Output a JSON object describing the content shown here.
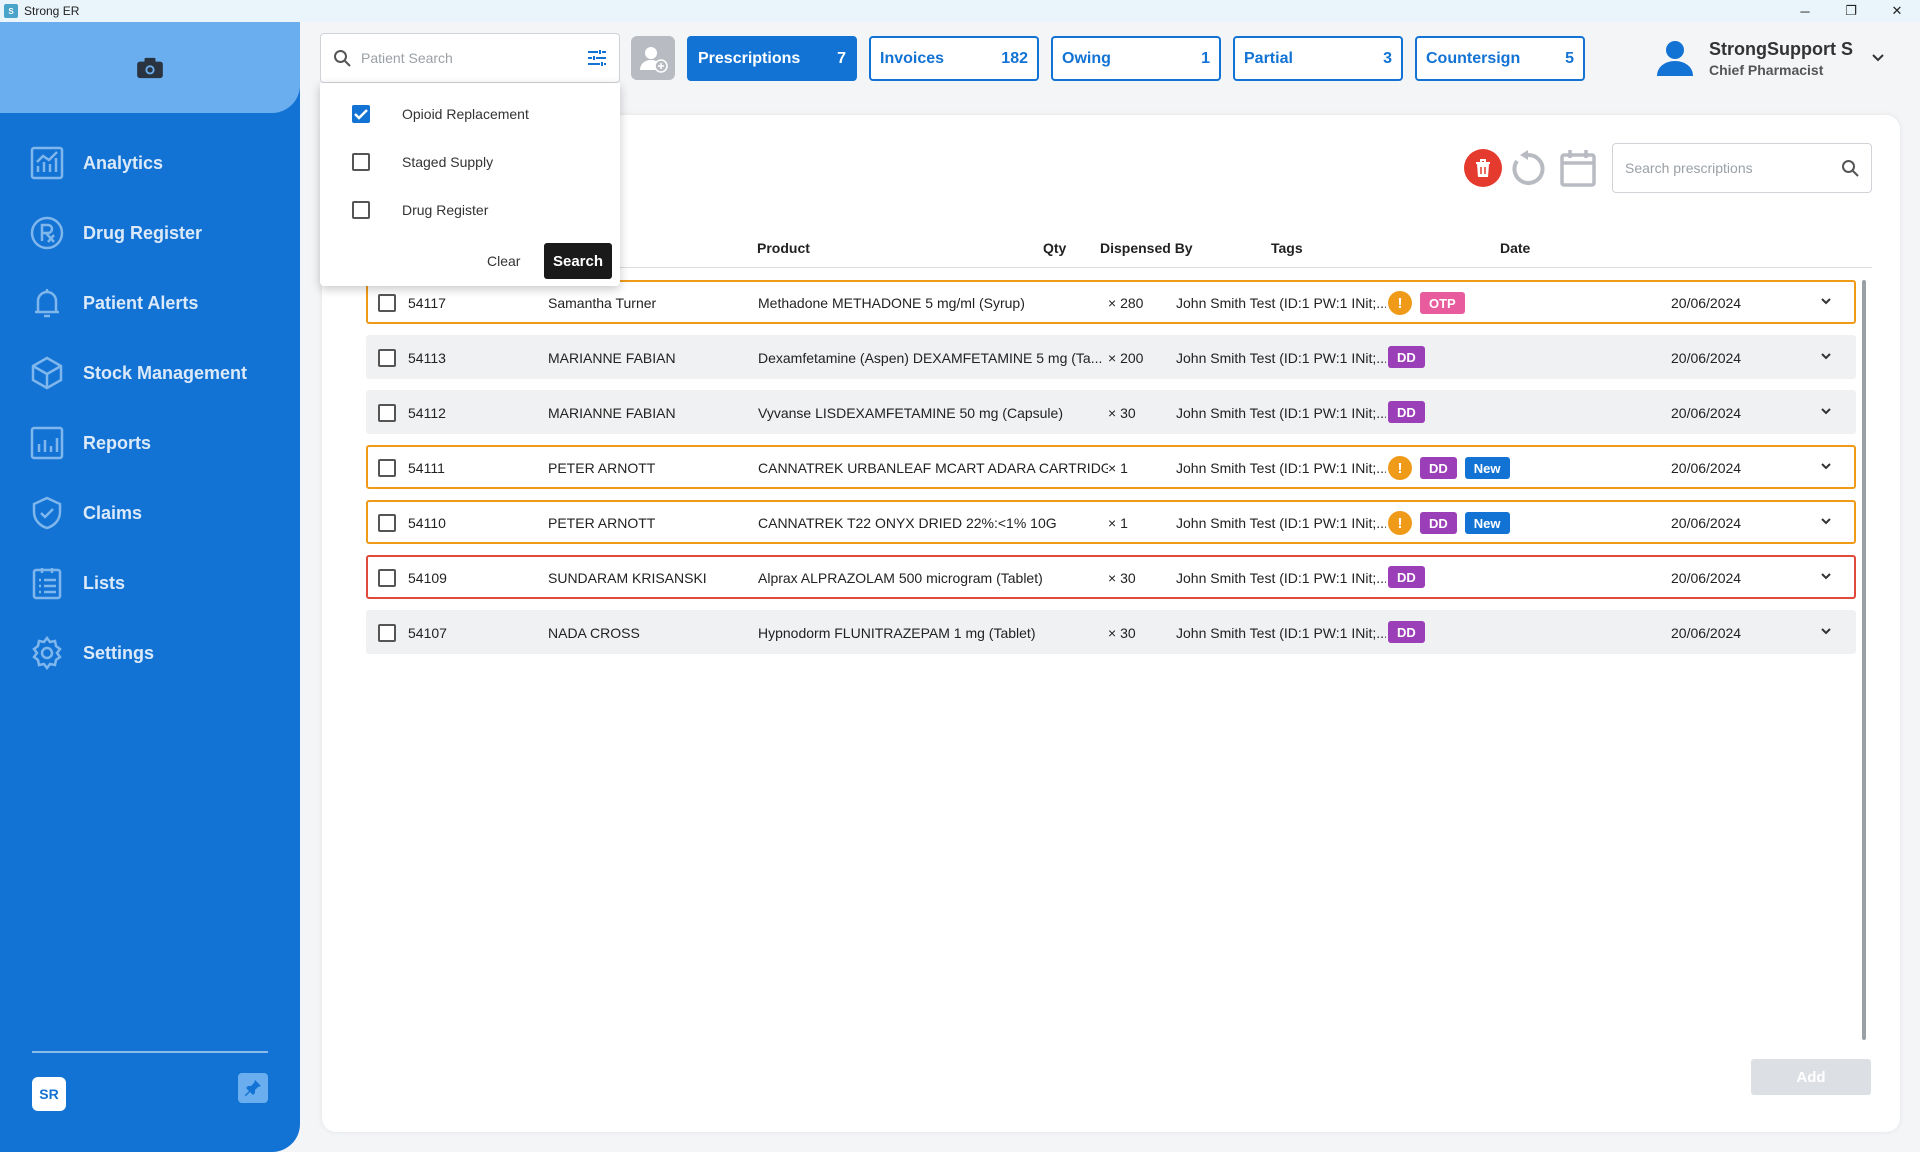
{
  "window": {
    "title": "Strong ER",
    "controls": [
      "─",
      "❐",
      "✕"
    ]
  },
  "sidebar": {
    "items": [
      {
        "label": "Analytics",
        "icon": "analytics-icon"
      },
      {
        "label": "Drug Register",
        "icon": "rx-icon"
      },
      {
        "label": "Patient Alerts",
        "icon": "bell-icon"
      },
      {
        "label": "Stock Management",
        "icon": "box-icon"
      },
      {
        "label": "Reports",
        "icon": "bar-chart-icon"
      },
      {
        "label": "Claims",
        "icon": "shield-check-icon"
      },
      {
        "label": "Lists",
        "icon": "list-icon"
      },
      {
        "label": "Settings",
        "icon": "gear-icon"
      }
    ],
    "logo_text": "SR"
  },
  "header": {
    "patient_search_placeholder": "Patient Search",
    "tabs": [
      {
        "label": "Prescriptions",
        "count": "7",
        "active": true
      },
      {
        "label": "Invoices",
        "count": "182",
        "active": false
      },
      {
        "label": "Owing",
        "count": "1",
        "active": false
      },
      {
        "label": "Partial",
        "count": "3",
        "active": false
      },
      {
        "label": "Countersign",
        "count": "5",
        "active": false
      }
    ],
    "user": {
      "name": "StrongSupport S",
      "role": "Chief Pharmacist"
    }
  },
  "filter_dropdown": {
    "options": [
      {
        "label": "Opioid Replacement",
        "checked": true
      },
      {
        "label": "Staged Supply",
        "checked": false
      },
      {
        "label": "Drug Register",
        "checked": false
      }
    ],
    "clear_label": "Clear",
    "search_label": "Search"
  },
  "prescriptions": {
    "search_placeholder": "Search prescriptions",
    "columns": {
      "product": "Product",
      "qty": "Qty",
      "dispensed_by": "Dispensed By",
      "tags": "Tags",
      "date": "Date"
    },
    "rows": [
      {
        "id": "54117",
        "patient": "Samantha Turner",
        "product": "Methadone METHADONE 5 mg/ml (Syrup)",
        "qty": "× 280",
        "dispensed_by": "John Smith Test (ID:1 PW:1 INit;...",
        "alert": true,
        "tags": [
          "OTP"
        ],
        "date": "20/06/2024",
        "status": "warn"
      },
      {
        "id": "54113",
        "patient": "MARIANNE FABIAN",
        "product": "Dexamfetamine (Aspen) DEXAMFETAMINE 5 mg (Ta...",
        "qty": "× 200",
        "dispensed_by": "John Smith Test (ID:1 PW:1 INit;...",
        "alert": false,
        "tags": [
          "DD"
        ],
        "date": "20/06/2024",
        "status": "normal"
      },
      {
        "id": "54112",
        "patient": "MARIANNE FABIAN",
        "product": "Vyvanse LISDEXAMFETAMINE 50 mg (Capsule)",
        "qty": "× 30",
        "dispensed_by": "John Smith Test (ID:1 PW:1 INit;...",
        "alert": false,
        "tags": [
          "DD"
        ],
        "date": "20/06/2024",
        "status": "normal"
      },
      {
        "id": "54111",
        "patient": "PETER ARNOTT",
        "product": "CANNATREK URBANLEAF MCART ADARA CARTRIDG...",
        "qty": "× 1",
        "dispensed_by": "John Smith Test (ID:1 PW:1 INit;...",
        "alert": true,
        "tags": [
          "DD",
          "New"
        ],
        "date": "20/06/2024",
        "status": "warn"
      },
      {
        "id": "54110",
        "patient": "PETER ARNOTT",
        "product": "CANNATREK T22 ONYX DRIED 22%:<1% 10G",
        "qty": "× 1",
        "dispensed_by": "John Smith Test (ID:1 PW:1 INit;...",
        "alert": true,
        "tags": [
          "DD",
          "New"
        ],
        "date": "20/06/2024",
        "status": "warn"
      },
      {
        "id": "54109",
        "patient": "SUNDARAM KRISANSKI",
        "product": "Alprax ALPRAZOLAM 500 microgram (Tablet)",
        "qty": "× 30",
        "dispensed_by": "John Smith Test (ID:1 PW:1 INit;...",
        "alert": false,
        "tags": [
          "DD"
        ],
        "date": "20/06/2024",
        "status": "danger"
      },
      {
        "id": "54107",
        "patient": "NADA CROSS",
        "product": "Hypnodorm FLUNITRAZEPAM 1 mg (Tablet)",
        "qty": "× 30",
        "dispensed_by": "John Smith Test (ID:1 PW:1 INit;...",
        "alert": false,
        "tags": [
          "DD"
        ],
        "date": "20/06/2024",
        "status": "normal"
      }
    ],
    "add_label": "Add"
  },
  "colors": {
    "primary": "#1273d4",
    "sidebar_top": "#6aaeef",
    "warn": "#f09a1a",
    "danger": "#e04a3a",
    "dd": "#9b3fb8",
    "otp": "#e85c9e"
  }
}
